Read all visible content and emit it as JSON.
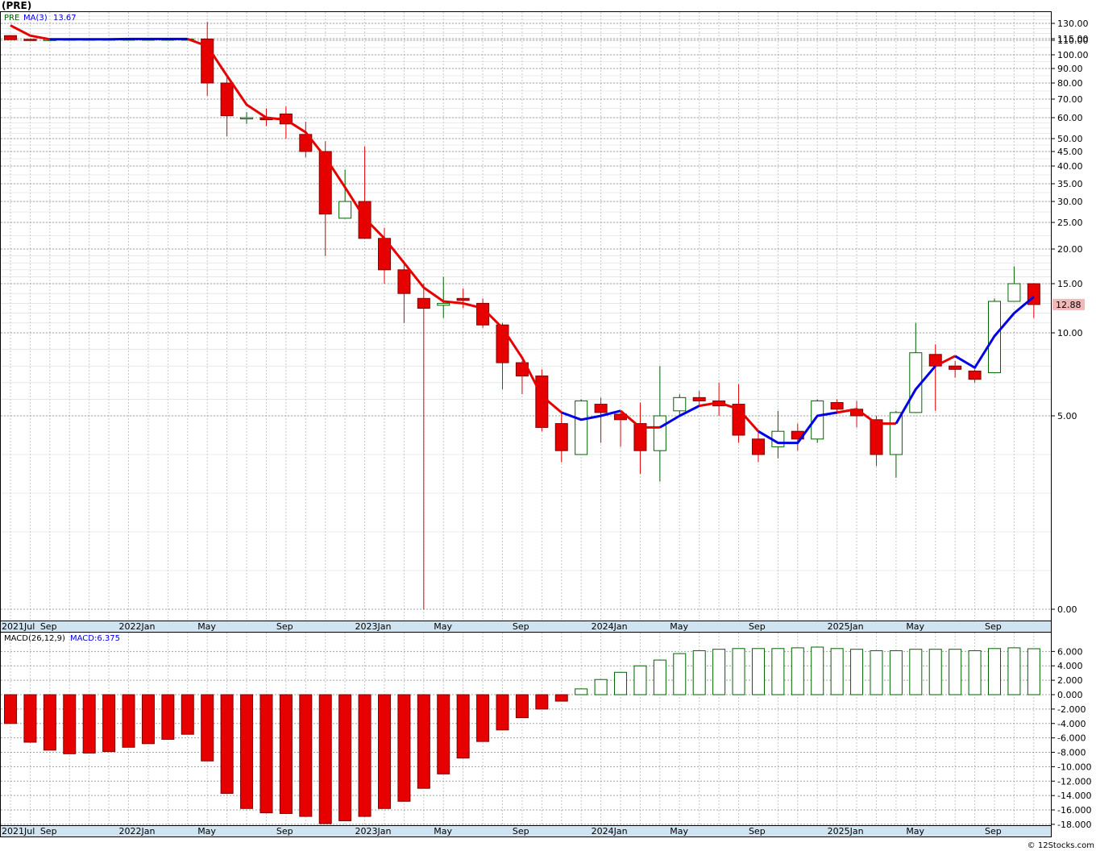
{
  "chart_data": {
    "title": "(PRE)",
    "ticker_label": "PRE",
    "ma_label": "MA(3)",
    "ma_value": "13.67",
    "last_price": "12.88",
    "macd_label": "MACD(26,12,9)",
    "macd_value": "MACD:6.375",
    "watermark": "© 12Stocks.com",
    "type": "candlestick",
    "price_ticks": [
      {
        "v": 130,
        "label": "130.00"
      },
      {
        "v": 115,
        "label": "115.00"
      },
      {
        "v": 110,
        "label": "110.00"
      },
      {
        "v": 100,
        "label": "100.00"
      },
      {
        "v": 90,
        "label": "90.00"
      },
      {
        "v": 80,
        "label": "80.00"
      },
      {
        "v": 70,
        "label": "70.00"
      },
      {
        "v": 60,
        "label": "60.00"
      },
      {
        "v": 50,
        "label": "50.00"
      },
      {
        "v": 45,
        "label": "45.00"
      },
      {
        "v": 40,
        "label": "40.00"
      },
      {
        "v": 35,
        "label": "35.00"
      },
      {
        "v": 30,
        "label": "30.00"
      },
      {
        "v": 25,
        "label": "25.00"
      },
      {
        "v": 20,
        "label": "20.00"
      },
      {
        "v": 15,
        "label": "15.00"
      },
      {
        "v": 10,
        "label": "10.00"
      },
      {
        "v": 5,
        "label": "5.00"
      },
      {
        "v": 0,
        "label": "0.00"
      }
    ],
    "macd_ticks": [
      {
        "v": 6,
        "label": "6.000"
      },
      {
        "v": 4,
        "label": "4.000"
      },
      {
        "v": 2,
        "label": "2.000"
      },
      {
        "v": 0,
        "label": "0.000"
      },
      {
        "v": -2,
        "label": "-2.000"
      },
      {
        "v": -4,
        "label": "-4.000"
      },
      {
        "v": -6,
        "label": "-6.000"
      },
      {
        "v": -8,
        "label": "-8.000"
      },
      {
        "v": -10,
        "label": "-10.000"
      },
      {
        "v": -12,
        "label": "-12.000"
      },
      {
        "v": -14,
        "label": "-14.000"
      },
      {
        "v": -16,
        "label": "-16.000"
      },
      {
        "v": -18,
        "label": "-18.000"
      }
    ],
    "x_labels": [
      {
        "i": 0,
        "label": "2021Jul"
      },
      {
        "i": 2,
        "label": "Sep"
      },
      {
        "i": 6,
        "label": "2022Jan"
      },
      {
        "i": 10,
        "label": "May"
      },
      {
        "i": 14,
        "label": "Sep"
      },
      {
        "i": 18,
        "label": "2023Jan"
      },
      {
        "i": 22,
        "label": "May"
      },
      {
        "i": 26,
        "label": "Sep"
      },
      {
        "i": 30,
        "label": "2024Jan"
      },
      {
        "i": 34,
        "label": "May"
      },
      {
        "i": 38,
        "label": "Sep"
      },
      {
        "i": 42,
        "label": "2025Jan"
      },
      {
        "i": 46,
        "label": "May"
      },
      {
        "i": 50,
        "label": "Sep"
      }
    ],
    "candles": [
      {
        "o": 118,
        "h": 118,
        "l": 111,
        "c": 112
      },
      {
        "o": 113,
        "h": 113,
        "l": 111,
        "c": 112
      },
      {
        "o": 113,
        "h": 114,
        "l": 111,
        "c": 113
      },
      {
        "o": 113,
        "h": 114,
        "l": 112,
        "c": 114
      },
      {
        "o": 114,
        "h": 114,
        "l": 113,
        "c": 114
      },
      {
        "o": 114,
        "h": 114,
        "l": 113,
        "c": 114
      },
      {
        "o": 114,
        "h": 114,
        "l": 113,
        "c": 114
      },
      {
        "o": 114,
        "h": 114,
        "l": 113,
        "c": 114
      },
      {
        "o": 114,
        "h": 114,
        "l": 113,
        "c": 114
      },
      {
        "o": 112,
        "h": 114,
        "l": 112,
        "c": 114
      },
      {
        "o": 114,
        "h": 132,
        "l": 72,
        "c": 80
      },
      {
        "o": 80,
        "h": 85,
        "l": 51,
        "c": 61
      },
      {
        "o": 60,
        "h": 63,
        "l": 57,
        "c": 60
      },
      {
        "o": 60,
        "h": 65,
        "l": 56,
        "c": 59
      },
      {
        "o": 62,
        "h": 66,
        "l": 50,
        "c": 57
      },
      {
        "o": 52,
        "h": 58,
        "l": 43,
        "c": 45
      },
      {
        "o": 45,
        "h": 49,
        "l": 19,
        "c": 27
      },
      {
        "o": 26,
        "h": 39,
        "l": 26,
        "c": 30
      },
      {
        "o": 30,
        "h": 47,
        "l": 22,
        "c": 22
      },
      {
        "o": 22,
        "h": 24,
        "l": 15,
        "c": 17
      },
      {
        "o": 17,
        "h": 18,
        "l": 11,
        "c": 14
      },
      {
        "o": 13.5,
        "h": 15,
        "l": 0,
        "c": 12.5
      },
      {
        "o": 12.8,
        "h": 16,
        "l": 11.5,
        "c": 13
      },
      {
        "o": 13.5,
        "h": 14.5,
        "l": 12.5,
        "c": 13.3
      },
      {
        "o": 13,
        "h": 13.5,
        "l": 10.5,
        "c": 10.8
      },
      {
        "o": 10.8,
        "h": 11,
        "l": 6.6,
        "c": 8.2
      },
      {
        "o": 8.2,
        "h": 8.3,
        "l": 6.3,
        "c": 7.4
      },
      {
        "o": 7.4,
        "h": 7.8,
        "l": 4.6,
        "c": 4.7
      },
      {
        "o": 4.8,
        "h": 5.3,
        "l": 3.8,
        "c": 4.1
      },
      {
        "o": 4.0,
        "h": 6.0,
        "l": 4.0,
        "c": 5.9
      },
      {
        "o": 5.7,
        "h": 6.1,
        "l": 4.3,
        "c": 5.2
      },
      {
        "o": 5.1,
        "h": 5.3,
        "l": 4.2,
        "c": 4.9
      },
      {
        "o": 4.8,
        "h": 5.8,
        "l": 3.5,
        "c": 4.1
      },
      {
        "o": 4.1,
        "h": 8.0,
        "l": 3.3,
        "c": 5.0
      },
      {
        "o": 5.3,
        "h": 6.3,
        "l": 5.0,
        "c": 6.1
      },
      {
        "o": 6.1,
        "h": 6.5,
        "l": 5.6,
        "c": 5.9
      },
      {
        "o": 5.9,
        "h": 7.0,
        "l": 5.0,
        "c": 5.6
      },
      {
        "o": 5.7,
        "h": 6.9,
        "l": 4.3,
        "c": 4.5
      },
      {
        "o": 4.4,
        "h": 4.6,
        "l": 3.8,
        "c": 4.0
      },
      {
        "o": 4.2,
        "h": 5.3,
        "l": 3.9,
        "c": 4.6
      },
      {
        "o": 4.6,
        "h": 4.8,
        "l": 4.1,
        "c": 4.4
      },
      {
        "o": 4.4,
        "h": 6.0,
        "l": 4.3,
        "c": 5.9
      },
      {
        "o": 5.8,
        "h": 6.0,
        "l": 5.1,
        "c": 5.4
      },
      {
        "o": 5.4,
        "h": 5.9,
        "l": 4.7,
        "c": 5.0
      },
      {
        "o": 4.9,
        "h": 5.0,
        "l": 3.7,
        "c": 4.0
      },
      {
        "o": 4.0,
        "h": 5.3,
        "l": 3.4,
        "c": 5.2
      },
      {
        "o": 5.2,
        "h": 11.0,
        "l": 5.2,
        "c": 8.8
      },
      {
        "o": 8.7,
        "h": 9.3,
        "l": 5.3,
        "c": 8.0
      },
      {
        "o": 8.0,
        "h": 8.3,
        "l": 7.3,
        "c": 7.8
      },
      {
        "o": 7.7,
        "h": 7.8,
        "l": 7.0,
        "c": 7.2
      },
      {
        "o": 7.6,
        "h": 13.5,
        "l": 7.6,
        "c": 13.2
      },
      {
        "o": 13.2,
        "h": 17.5,
        "l": 13.2,
        "c": 15.0
      },
      {
        "o": 15.0,
        "h": 15.0,
        "l": 11.5,
        "c": 12.88
      }
    ],
    "ma3": [
      128,
      118,
      113,
      113,
      113,
      113,
      114,
      114,
      114,
      114,
      106,
      85,
      67,
      60,
      59,
      53,
      43,
      34,
      26,
      22,
      18,
      14.6,
      13.2,
      13,
      12.5,
      10.5,
      8.5,
      6.2,
      5.2,
      4.9,
      5.0,
      5.3,
      4.7,
      4.7,
      5.0,
      5.6,
      5.8,
      5.4,
      4.6,
      4.3,
      4.3,
      5.0,
      5.2,
      5.4,
      4.8,
      4.8,
      6.6,
      8.0,
      8.6,
      7.9,
      9.8,
      12.0,
      13.67
    ],
    "ma_segments": [
      {
        "from": 0,
        "to": 2,
        "color": "#e60000"
      },
      {
        "from": 2,
        "to": 9,
        "color": "#0000e6"
      },
      {
        "from": 9,
        "to": 28,
        "color": "#e60000"
      },
      {
        "from": 28,
        "to": 31,
        "color": "#0000e6"
      },
      {
        "from": 31,
        "to": 33,
        "color": "#e60000"
      },
      {
        "from": 33,
        "to": 35,
        "color": "#0000e6"
      },
      {
        "from": 35,
        "to": 38,
        "color": "#e60000"
      },
      {
        "from": 38,
        "to": 42,
        "color": "#0000e6"
      },
      {
        "from": 42,
        "to": 45,
        "color": "#e60000"
      },
      {
        "from": 45,
        "to": 47,
        "color": "#0000e6"
      },
      {
        "from": 47,
        "to": 48,
        "color": "#e60000"
      },
      {
        "from": 48,
        "to": 52,
        "color": "#0000e6"
      }
    ],
    "macd": [
      -4.0,
      -6.6,
      -7.7,
      -8.2,
      -8.1,
      -7.9,
      -7.3,
      -6.8,
      -6.2,
      -5.5,
      -9.2,
      -13.7,
      -15.8,
      -16.4,
      -16.5,
      -16.9,
      -17.9,
      -17.5,
      -16.9,
      -15.8,
      -14.8,
      -13.0,
      -11.0,
      -8.8,
      -6.5,
      -4.9,
      -3.2,
      -2.0,
      -0.9,
      0.8,
      2.1,
      3.1,
      4.0,
      4.8,
      5.7,
      6.1,
      6.3,
      6.4,
      6.4,
      6.4,
      6.5,
      6.6,
      6.4,
      6.3,
      6.1,
      6.1,
      6.3,
      6.3,
      6.3,
      6.1,
      6.4,
      6.5,
      6.375
    ],
    "colors": {
      "down": "#e60000",
      "up_border": "#006400",
      "ma_up": "#0000e6",
      "ma_down": "#e60000",
      "axis_bg": "#cfe3f0",
      "grid": "#aaaaaa",
      "price_tag_bg": "#f2b8b8"
    }
  }
}
